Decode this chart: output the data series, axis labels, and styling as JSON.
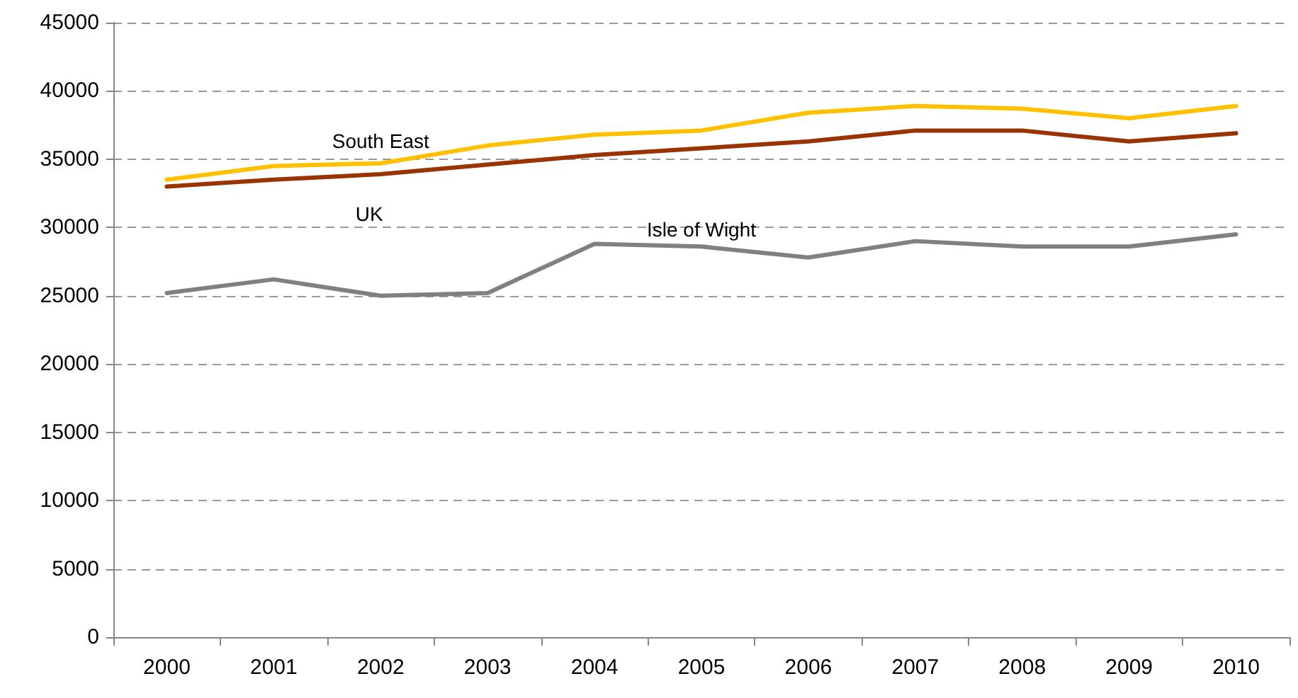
{
  "chart_data": {
    "type": "line",
    "categories": [
      "2000",
      "2001",
      "2002",
      "2003",
      "2004",
      "2005",
      "2006",
      "2007",
      "2008",
      "2009",
      "2010"
    ],
    "series": [
      {
        "name": "South East",
        "color": "#ffc000",
        "values": [
          33500,
          34500,
          34700,
          36000,
          36800,
          37100,
          38400,
          38900,
          38700,
          38000,
          38900
        ]
      },
      {
        "name": "UK",
        "color": "#993300",
        "values": [
          33000,
          33500,
          33900,
          34600,
          35300,
          35800,
          36300,
          37100,
          37100,
          36300,
          36900
        ]
      },
      {
        "name": "Isle of Wight",
        "color": "#808080",
        "values": [
          25200,
          26200,
          25000,
          25200,
          28800,
          28600,
          27800,
          29000,
          28600,
          28600,
          29500
        ]
      }
    ],
    "ylim": [
      0,
      45000
    ],
    "yticks": [
      0,
      5000,
      10000,
      15000,
      20000,
      25000,
      30000,
      35000,
      40000,
      45000
    ],
    "grid": "y",
    "legend": false,
    "marker": "none",
    "line_style": "solid"
  }
}
